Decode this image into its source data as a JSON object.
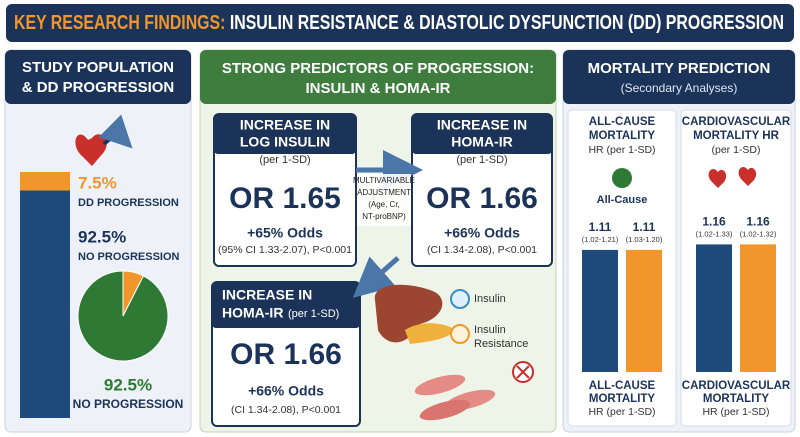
{
  "header": {
    "title_lead": "KEY RESEARCH FINDINGS:",
    "title_rest": "INSULIN RESISTANCE & DIASTOLIC DYSFUNCTION (DD) PROGRESSION"
  },
  "population": {
    "title_lines": [
      "STUDY POPULATION",
      "& DD PROGRESSION"
    ],
    "bar": {
      "segments": [
        {
          "name": "NO PROGRESSION",
          "value": 92.5,
          "label": "92.5%",
          "color": "#1e4a7c"
        },
        {
          "name": "DD PROGRESSION",
          "value": 7.5,
          "label": "7.5%",
          "color": "#f0962a"
        }
      ]
    },
    "pie": {
      "slices": [
        {
          "value": 7.5,
          "color": "#f0962a"
        },
        {
          "name": "NO PROGRESSION",
          "value": 92.5,
          "label": "92.5%",
          "color": "#2e7a34"
        }
      ]
    }
  },
  "predictors": {
    "title_lines": [
      "STRONG PREDICTORS OF PROGRESSION:",
      "INSULIN & HOMA-IR"
    ],
    "cards": [
      {
        "heading": [
          "INCREASE IN",
          "LOG INSULIN"
        ],
        "unit": "(per 1-SD)",
        "or": "OR 1.65",
        "odds": "+65% Odds",
        "ci": "(95% CI 1.33-2.07), P<0.001"
      },
      {
        "heading": [
          "INCREASE IN",
          "HOMA-IR"
        ],
        "unit": "(per 1-SD)",
        "or": "OR 1.66",
        "odds": "+66% Odds",
        "ci": "(CI 1.34-2.08), P<0.001"
      },
      {
        "heading": [
          "INCREASE IN",
          "HOMA-IR"
        ],
        "unit": "(per 1-SD)",
        "or": "OR 1.66",
        "odds": "+66% Odds",
        "ci": "(CI 1.34-2.08), P<0.001"
      }
    ],
    "adjustment": [
      "MULTIVARIABLE",
      "ADJUSTMENT",
      "(Age, Cr,",
      "NT-proBNP)"
    ],
    "legend": [
      "Insulin",
      "Insulin",
      "Resistance"
    ]
  },
  "mortality": {
    "title": "MORTALITY PREDICTION",
    "subtitle": "(Secondary Analyses)",
    "panels": [
      {
        "heading": [
          "ALL-CAUSE",
          "MORTALITY",
          "HR (per 1-SD)"
        ],
        "icon_label": "All-Cause",
        "bars": [
          {
            "value": 1.11,
            "ci": "(1.02-1.21)",
            "color": "#1e4a7c"
          },
          {
            "value": 1.11,
            "ci": "(1.03-1.20)",
            "color": "#f0962a"
          }
        ],
        "footer": [
          "ALL-CAUSE",
          "MORTALITY",
          "HR (per 1-SD)"
        ]
      },
      {
        "heading": [
          "CARDIOVASCULAR",
          "MORTALITY HR",
          "(per 1-SD)"
        ],
        "bars": [
          {
            "value": 1.16,
            "ci": "(1.02-1.33)",
            "color": "#1e4a7c"
          },
          {
            "value": 1.16,
            "ci": "(1.02-1.32)",
            "color": "#f0962a"
          }
        ],
        "footer": [
          "CARDIOVASCULAR",
          "MORTALITY",
          "HR (per 1-SD)"
        ]
      }
    ]
  }
}
